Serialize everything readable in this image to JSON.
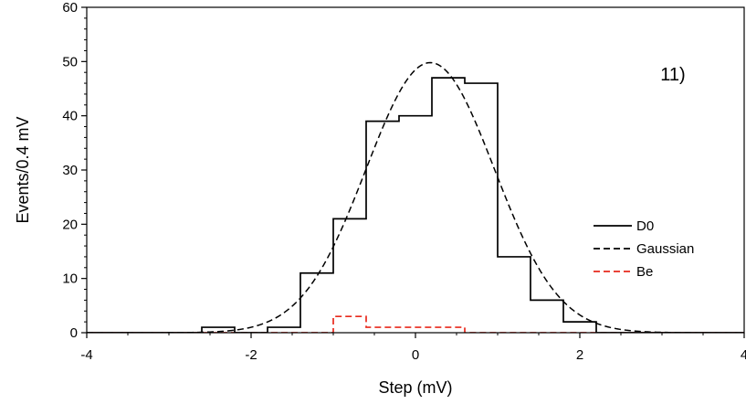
{
  "chart_data": {
    "type": "line",
    "title": "",
    "xlabel": "Step  (mV)",
    "ylabel": "Events/0.4 mV",
    "xlim": [
      -4,
      4
    ],
    "ylim": [
      0,
      60
    ],
    "x_ticks": [
      "-4",
      "-2",
      "0",
      "2",
      "4"
    ],
    "x_tick_values": [
      -4,
      -2,
      0,
      2,
      4
    ],
    "y_ticks": [
      "0",
      "10",
      "20",
      "30",
      "40",
      "50",
      "60"
    ],
    "y_tick_values": [
      0,
      10,
      20,
      30,
      40,
      50,
      60
    ],
    "annotation": "11)",
    "legend_position": "right",
    "grid": false,
    "series": [
      {
        "name": "D0",
        "style": "step",
        "color": "#000000",
        "dash": "solid",
        "bin_edges": [
          -4.2,
          -3.8,
          -3.4,
          -3.0,
          -2.6,
          -2.2,
          -1.8,
          -1.4,
          -1.0,
          -0.6,
          -0.2,
          0.2,
          0.6,
          1.0,
          1.4,
          1.8,
          2.2,
          2.6,
          3.0,
          3.4,
          3.8,
          4.2
        ],
        "values": [
          0,
          0,
          0,
          0,
          1,
          0,
          1,
          11,
          21,
          39,
          40,
          47,
          46,
          14,
          6,
          2,
          0,
          0,
          0,
          0,
          0
        ]
      },
      {
        "name": "Gaussian",
        "style": "curve",
        "color": "#000000",
        "dash": "dashed",
        "amplitude": 49.8,
        "mean": 0.18,
        "sigma": 0.78
      },
      {
        "name": "Be",
        "style": "step",
        "color": "#e8291c",
        "dash": "dashed",
        "bin_edges": [
          -4.2,
          -3.8,
          -3.4,
          -3.0,
          -2.6,
          -2.2,
          -1.8,
          -1.4,
          -1.0,
          -0.6,
          -0.2,
          0.2,
          0.6,
          1.0,
          1.4,
          1.8,
          2.2,
          2.6,
          3.0,
          3.4,
          3.8,
          4.2
        ],
        "values": [
          0,
          0,
          0,
          0,
          0,
          0,
          0,
          0,
          3,
          1,
          1,
          1,
          0,
          0,
          0,
          0,
          0,
          0,
          0,
          0,
          0
        ]
      }
    ]
  }
}
